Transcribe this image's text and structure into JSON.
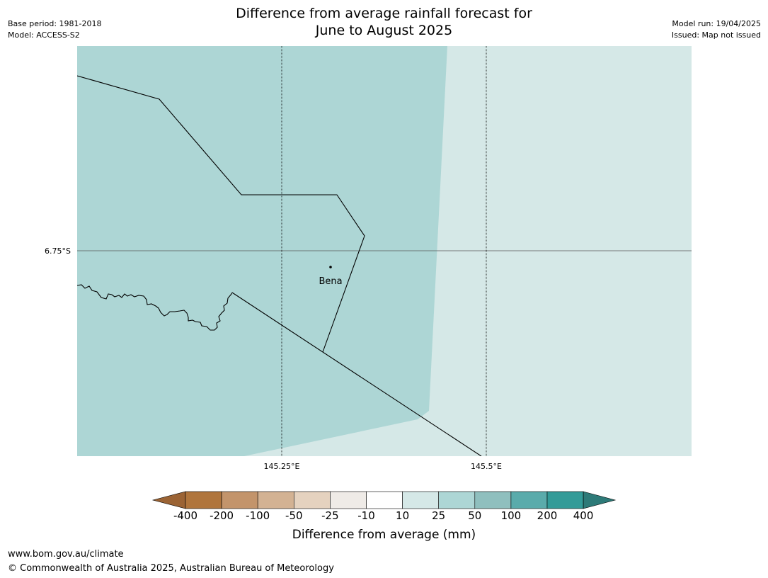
{
  "title": {
    "line1": "Difference from average rainfall forecast for",
    "line2": "June to August 2025"
  },
  "meta_left": {
    "base_period": "Base period: 1981-2018",
    "model": "Model: ACCESS-S2"
  },
  "meta_right": {
    "model_run": "Model run: 19/04/2025",
    "issued": "Issued: Map not issued"
  },
  "map": {
    "lat_label": "6.75°S",
    "lon_labels": [
      "145.25°E",
      "145.5°E"
    ],
    "place_name": "Bena",
    "fill_colors": {
      "class_10_25": "#d5e8e7",
      "class_25_50": "#add6d5"
    }
  },
  "colorbar": {
    "labels": [
      "-400",
      "-200",
      "-100",
      "-50",
      "-25",
      "-10",
      "10",
      "25",
      "50",
      "100",
      "200",
      "400"
    ],
    "colors": [
      "#9b6334",
      "#b0753c",
      "#c3946b",
      "#d3b293",
      "#e5d2bf",
      "#efebe7",
      "#ffffff",
      "#d5e8e7",
      "#add6d5",
      "#8fbfbe",
      "#5aabab",
      "#339b98",
      "#2d7a78"
    ],
    "title": "Difference from average (mm)"
  },
  "footer": {
    "url": "www.bom.gov.au/climate",
    "copyright": "© Commonwealth of Australia 2025, Australian Bureau of Meteorology"
  }
}
